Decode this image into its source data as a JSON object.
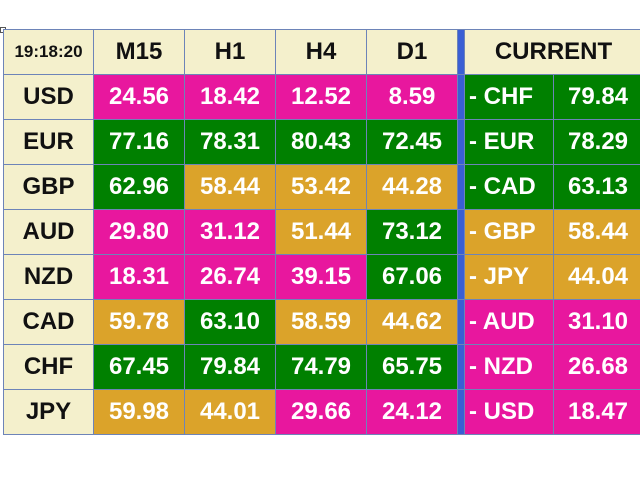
{
  "time": "19:18:20",
  "colors": {
    "pink": "#e8179e",
    "green": "#008000",
    "gold": "#dba32a",
    "header_bg": "#f4f0cc",
    "separator": "#3a5fd4"
  },
  "headers": [
    "M15",
    "H1",
    "H4",
    "D1"
  ],
  "current_header": "CURRENT",
  "rows": [
    {
      "symbol": "USD",
      "cells": [
        {
          "v": "24.56",
          "c": "pink"
        },
        {
          "v": "18.42",
          "c": "pink"
        },
        {
          "v": "12.52",
          "c": "pink"
        },
        {
          "v": "8.59",
          "c": "pink"
        }
      ]
    },
    {
      "symbol": "EUR",
      "cells": [
        {
          "v": "77.16",
          "c": "green"
        },
        {
          "v": "78.31",
          "c": "green"
        },
        {
          "v": "80.43",
          "c": "green"
        },
        {
          "v": "72.45",
          "c": "green"
        }
      ]
    },
    {
      "symbol": "GBP",
      "cells": [
        {
          "v": "62.96",
          "c": "green"
        },
        {
          "v": "58.44",
          "c": "gold"
        },
        {
          "v": "53.42",
          "c": "gold"
        },
        {
          "v": "44.28",
          "c": "gold"
        }
      ]
    },
    {
      "symbol": "AUD",
      "cells": [
        {
          "v": "29.80",
          "c": "pink"
        },
        {
          "v": "31.12",
          "c": "pink"
        },
        {
          "v": "51.44",
          "c": "gold"
        },
        {
          "v": "73.12",
          "c": "green"
        }
      ]
    },
    {
      "symbol": "NZD",
      "cells": [
        {
          "v": "18.31",
          "c": "pink"
        },
        {
          "v": "26.74",
          "c": "pink"
        },
        {
          "v": "39.15",
          "c": "pink"
        },
        {
          "v": "67.06",
          "c": "green"
        }
      ]
    },
    {
      "symbol": "CAD",
      "cells": [
        {
          "v": "59.78",
          "c": "gold"
        },
        {
          "v": "63.10",
          "c": "green"
        },
        {
          "v": "58.59",
          "c": "gold"
        },
        {
          "v": "44.62",
          "c": "gold"
        }
      ]
    },
    {
      "symbol": "CHF",
      "cells": [
        {
          "v": "67.45",
          "c": "green"
        },
        {
          "v": "79.84",
          "c": "green"
        },
        {
          "v": "74.79",
          "c": "green"
        },
        {
          "v": "65.75",
          "c": "green"
        }
      ]
    },
    {
      "symbol": "JPY",
      "cells": [
        {
          "v": "59.98",
          "c": "gold"
        },
        {
          "v": "44.01",
          "c": "gold"
        },
        {
          "v": "29.66",
          "c": "pink"
        },
        {
          "v": "24.12",
          "c": "pink"
        }
      ]
    }
  ],
  "current": [
    {
      "label": "- CHF",
      "value": "79.84",
      "c": "green"
    },
    {
      "label": "- EUR",
      "value": "78.29",
      "c": "green"
    },
    {
      "label": "- CAD",
      "value": "63.13",
      "c": "green"
    },
    {
      "label": "- GBP",
      "value": "58.44",
      "c": "gold"
    },
    {
      "label": "- JPY",
      "value": "44.04",
      "c": "gold"
    },
    {
      "label": "- AUD",
      "value": "31.10",
      "c": "pink"
    },
    {
      "label": "- NZD",
      "value": "26.68",
      "c": "pink"
    },
    {
      "label": "- USD",
      "value": "18.47",
      "c": "pink"
    }
  ]
}
